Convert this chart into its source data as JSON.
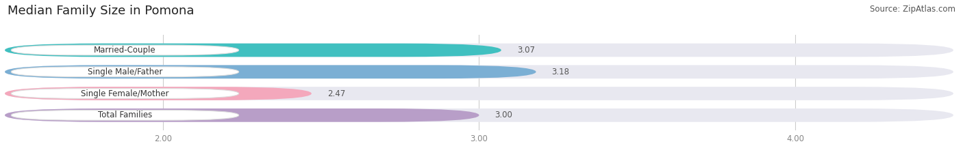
{
  "title": "Median Family Size in Pomona",
  "source": "Source: ZipAtlas.com",
  "categories": [
    "Married-Couple",
    "Single Male/Father",
    "Single Female/Mother",
    "Total Families"
  ],
  "values": [
    3.07,
    3.18,
    2.47,
    3.0
  ],
  "bar_colors": [
    "#40c0c0",
    "#7bafd4",
    "#f4a8bc",
    "#b89ec8"
  ],
  "xmin": 1.5,
  "xmax": 4.5,
  "xticks": [
    2.0,
    3.0,
    4.0
  ],
  "xtick_labels": [
    "2.00",
    "3.00",
    "4.00"
  ],
  "bar_height": 0.62,
  "background_color": "#ffffff",
  "bar_bg_color": "#e8e8f0",
  "title_fontsize": 13,
  "label_fontsize": 8.5,
  "value_fontsize": 8.5,
  "source_fontsize": 8.5,
  "label_box_color": "#ffffff",
  "label_color": "#333333",
  "value_color": "#555555",
  "tick_color": "#888888",
  "grid_color": "#cccccc"
}
